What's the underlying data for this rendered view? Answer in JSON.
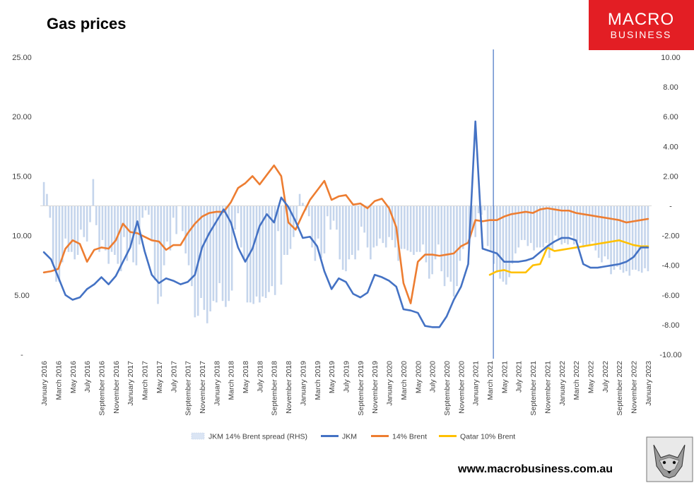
{
  "page": {
    "brand_line1": "MACRO",
    "brand_line2": "BUSINESS",
    "website": "www.macrobusiness.com.au",
    "wolf_icon": "wolf-head-icon"
  },
  "chart_data": {
    "type": "line",
    "title": "Gas prices",
    "y_left": {
      "ylim": [
        0,
        25
      ],
      "ticks": [
        0,
        5,
        10,
        15,
        20,
        25
      ],
      "tick_labels": [
        "-",
        "5.00",
        "10.00",
        "15.00",
        "20.00",
        "25.00"
      ]
    },
    "y_right": {
      "ylim": [
        -10,
        10
      ],
      "ticks": [
        -10,
        -8,
        -6,
        -4,
        -2,
        0,
        2,
        4,
        6,
        8,
        10
      ],
      "tick_labels": [
        "-10.00",
        "-8.00",
        "-6.00",
        "-4.00",
        "-2.00",
        "-",
        "2.00",
        "4.00",
        "6.00",
        "8.00",
        "10.00"
      ]
    },
    "x_tick_labels": [
      "January 2016",
      "March 2016",
      "May 2016",
      "July 2016",
      "September 2016",
      "November 2016",
      "January 2017",
      "March 2017",
      "May 2017",
      "July 2017",
      "September 2017",
      "November 2017",
      "January 2018",
      "March 2018",
      "May 2018",
      "July 2018",
      "September 2018",
      "November 2018",
      "January 2019",
      "March 2019",
      "May 2019",
      "July 2019",
      "September 2019",
      "November 2019",
      "January 2020",
      "March 2020",
      "May 2020",
      "July 2020",
      "September 2020",
      "November 2020",
      "January 2021",
      "March 2021",
      "May 2021",
      "July 2021",
      "September 2021",
      "November 2021",
      "January 2022",
      "March 2022",
      "May 2022",
      "July 2022",
      "September 2022",
      "November 2022",
      "January 2023"
    ],
    "grid": false,
    "legend_position": "bottom",
    "vertical_marker_month_index": 62.5,
    "series": [
      {
        "name": "JKM 14% Brent spread (RHS)",
        "type": "bar",
        "axis": "right",
        "color": "#c5d5ec",
        "values": [
          1.6,
          0.8,
          -0.8,
          -3.9,
          -5.1,
          -5.1,
          -3.8,
          -2.2,
          -3.1,
          -3.1,
          -3.6,
          -3.3,
          -1.6,
          -2.1,
          -2.4,
          -1.1,
          1.8,
          -1.3,
          -3.1,
          -2.3,
          -3.0,
          -3.9,
          -3.1,
          -3.3,
          -3.9,
          -4.4,
          -2.1,
          -3.7,
          -2.8,
          -3.8,
          -4.0,
          -2.6,
          -0.8,
          -0.3,
          -0.6,
          -2.3,
          -5.0,
          -6.6,
          -6.1,
          -4.0,
          -2.4,
          -3.0,
          -0.8,
          -1.9,
          0.0,
          -1.7,
          -3.2,
          -4.0,
          -5.4,
          -7.5,
          -7.4,
          -6.2,
          -7.0,
          -7.9,
          -7.1,
          -6.4,
          -6.5,
          -5.2,
          -6.4,
          -6.8,
          -6.4,
          -5.7,
          -1.6,
          -0.5,
          -2.8,
          -3.6,
          -6.5,
          -6.5,
          -6.6,
          -6.1,
          -6.5,
          -6.1,
          -6.2,
          -5.8,
          -5.4,
          -6.0,
          -1.7,
          -5.3,
          -3.3,
          -3.3,
          -2.9,
          -2.1,
          -1.0,
          0.8,
          0.2,
          -0.3,
          -0.7,
          -2.8,
          -3.7,
          -2.2,
          -3.5,
          -3.2,
          -0.7,
          -1.6,
          -1.0,
          -1.6,
          -3.6,
          -4.3,
          -4.4,
          -3.6,
          -3.3,
          -3.6,
          -3.0,
          -1.4,
          -1.8,
          -2.8,
          -3.6,
          -2.8,
          -2.7,
          -2.2,
          -2.5,
          -2.8,
          -2.1,
          -2.3,
          -2.8,
          -3.7,
          -2.9,
          -2.9,
          -3.0,
          -3.1,
          -3.3,
          -3.1,
          -3.1,
          -2.6,
          -3.8,
          -4.9,
          -4.6,
          -3.6,
          -2.6,
          -4.4,
          -5.4,
          -4.8,
          -5.1,
          -6.1,
          -5.4,
          -3.7,
          -2.9,
          -2.6,
          -2.4,
          -1.6,
          -2.1,
          -0.5,
          -0.6,
          -0.3,
          -2.7,
          -3.0,
          -3.9,
          -4.5,
          -4.9,
          -5.1,
          -5.3,
          -4.8,
          -3.9,
          -3.2,
          -2.8,
          -2.3,
          -2.3,
          -2.7,
          -2.5,
          -3.0,
          -2.8,
          -2.8,
          -2.8,
          -2.5,
          -3.5,
          -3.0,
          -2.0,
          -2.2,
          -2.6,
          -2.5,
          -2.6,
          -2.0,
          -2.6,
          -2.4,
          -2.5,
          -2.8,
          -2.7,
          -2.6,
          -2.4,
          -3.0,
          -3.5,
          -3.8,
          -3.4,
          -3.6,
          -4.6,
          -4.3,
          -4.1,
          -4.3,
          -4.5,
          -4.4,
          -4.7,
          -4.3,
          -4.3,
          -4.4,
          -4.5,
          -4.2,
          -4.4
        ]
      },
      {
        "name": "JKM",
        "type": "line",
        "axis": "left",
        "color": "#4472c4",
        "points": [
          [
            0,
            8.6
          ],
          [
            1,
            8.0
          ],
          [
            2,
            6.5
          ],
          [
            3,
            5.0
          ],
          [
            4,
            4.6
          ],
          [
            5,
            4.8
          ],
          [
            6,
            5.5
          ],
          [
            7,
            5.9
          ],
          [
            8,
            6.5
          ],
          [
            9,
            5.9
          ],
          [
            10,
            6.6
          ],
          [
            11,
            7.8
          ],
          [
            12,
            9.0
          ],
          [
            13,
            11.2
          ],
          [
            14,
            8.7
          ],
          [
            15,
            6.7
          ],
          [
            16,
            6.0
          ],
          [
            17,
            6.4
          ],
          [
            18,
            6.2
          ],
          [
            19,
            5.9
          ],
          [
            20,
            6.1
          ],
          [
            21,
            6.7
          ],
          [
            22,
            9.0
          ],
          [
            23,
            10.2
          ],
          [
            24,
            11.2
          ],
          [
            25,
            12.2
          ],
          [
            26,
            11.1
          ],
          [
            27,
            9.0
          ],
          [
            28,
            7.8
          ],
          [
            29,
            8.9
          ],
          [
            30,
            10.8
          ],
          [
            31,
            11.8
          ],
          [
            32,
            11.1
          ],
          [
            33,
            13.2
          ],
          [
            34,
            12.4
          ],
          [
            35,
            11.2
          ],
          [
            36,
            9.8
          ],
          [
            37,
            9.9
          ],
          [
            38,
            9.1
          ],
          [
            39,
            7.0
          ],
          [
            40,
            5.5
          ],
          [
            41,
            6.4
          ],
          [
            42,
            6.1
          ],
          [
            43,
            5.1
          ],
          [
            44,
            4.8
          ],
          [
            45,
            5.2
          ],
          [
            46,
            6.7
          ],
          [
            47,
            6.5
          ],
          [
            48,
            6.2
          ],
          [
            49,
            5.7
          ],
          [
            50,
            3.8
          ],
          [
            51,
            3.7
          ],
          [
            52,
            3.5
          ],
          [
            53,
            2.4
          ],
          [
            54,
            2.3
          ],
          [
            55,
            2.3
          ],
          [
            56,
            3.2
          ],
          [
            57,
            4.6
          ],
          [
            58,
            5.7
          ],
          [
            59,
            7.6
          ],
          [
            60,
            19.6
          ],
          [
            61,
            8.9
          ],
          [
            62,
            8.7
          ],
          [
            63,
            8.5
          ],
          [
            64,
            7.8
          ],
          [
            65,
            7.8
          ],
          [
            66,
            7.8
          ],
          [
            67,
            7.9
          ],
          [
            68,
            8.1
          ],
          [
            69,
            8.6
          ],
          [
            70,
            9.1
          ],
          [
            71,
            9.5
          ],
          [
            72,
            9.8
          ],
          [
            73,
            9.8
          ],
          [
            74,
            9.6
          ],
          [
            75,
            7.6
          ],
          [
            76,
            7.3
          ],
          [
            77,
            7.3
          ],
          [
            78,
            7.4
          ],
          [
            79,
            7.5
          ],
          [
            80,
            7.6
          ],
          [
            81,
            7.8
          ],
          [
            82,
            8.2
          ],
          [
            83,
            9.0
          ],
          [
            84,
            9.0
          ]
        ]
      },
      {
        "name": "14% Brent",
        "type": "line",
        "axis": "left",
        "color": "#ed7d31",
        "points": [
          [
            0,
            6.9
          ],
          [
            1,
            7.0
          ],
          [
            2,
            7.2
          ],
          [
            3,
            8.9
          ],
          [
            4,
            9.6
          ],
          [
            5,
            9.3
          ],
          [
            6,
            7.8
          ],
          [
            7,
            8.8
          ],
          [
            8,
            9.0
          ],
          [
            9,
            8.9
          ],
          [
            10,
            9.6
          ],
          [
            11,
            11.0
          ],
          [
            12,
            10.3
          ],
          [
            13,
            10.2
          ],
          [
            14,
            9.9
          ],
          [
            15,
            9.6
          ],
          [
            16,
            9.5
          ],
          [
            17,
            8.8
          ],
          [
            18,
            9.2
          ],
          [
            19,
            9.2
          ],
          [
            20,
            10.2
          ],
          [
            21,
            11.0
          ],
          [
            22,
            11.6
          ],
          [
            23,
            11.9
          ],
          [
            24,
            12.0
          ],
          [
            25,
            12.0
          ],
          [
            26,
            12.8
          ],
          [
            27,
            14.0
          ],
          [
            28,
            14.4
          ],
          [
            29,
            15.0
          ],
          [
            30,
            14.3
          ],
          [
            31,
            15.1
          ],
          [
            32,
            15.9
          ],
          [
            33,
            15.0
          ],
          [
            34,
            11.1
          ],
          [
            35,
            10.5
          ],
          [
            36,
            11.8
          ],
          [
            37,
            13.0
          ],
          [
            38,
            13.8
          ],
          [
            39,
            14.6
          ],
          [
            40,
            13.0
          ],
          [
            41,
            13.3
          ],
          [
            42,
            13.4
          ],
          [
            43,
            12.6
          ],
          [
            44,
            12.7
          ],
          [
            45,
            12.3
          ],
          [
            46,
            12.9
          ],
          [
            47,
            13.1
          ],
          [
            48,
            12.3
          ],
          [
            49,
            10.7
          ],
          [
            50,
            6.0
          ],
          [
            51,
            4.3
          ],
          [
            52,
            7.8
          ],
          [
            53,
            8.4
          ],
          [
            54,
            8.4
          ],
          [
            55,
            8.3
          ],
          [
            56,
            8.4
          ],
          [
            57,
            8.5
          ],
          [
            58,
            9.1
          ],
          [
            59,
            9.4
          ],
          [
            60,
            11.3
          ],
          [
            61,
            11.2
          ],
          [
            62,
            11.3
          ],
          [
            63,
            11.3
          ],
          [
            64,
            11.6
          ],
          [
            65,
            11.8
          ],
          [
            66,
            11.9
          ],
          [
            67,
            12.0
          ],
          [
            68,
            11.9
          ],
          [
            69,
            12.2
          ],
          [
            70,
            12.3
          ],
          [
            71,
            12.2
          ],
          [
            72,
            12.1
          ],
          [
            73,
            12.1
          ],
          [
            74,
            11.9
          ],
          [
            75,
            11.8
          ],
          [
            76,
            11.7
          ],
          [
            77,
            11.6
          ],
          [
            78,
            11.5
          ],
          [
            79,
            11.4
          ],
          [
            80,
            11.3
          ],
          [
            81,
            11.1
          ],
          [
            82,
            11.2
          ],
          [
            83,
            11.3
          ],
          [
            84,
            11.4
          ]
        ]
      },
      {
        "name": "Qatar 10% Brent",
        "type": "line",
        "axis": "left",
        "color": "#ffc000",
        "points": [
          [
            62,
            6.7
          ],
          [
            63,
            7.0
          ],
          [
            64,
            7.1
          ],
          [
            65,
            6.9
          ],
          [
            66,
            6.9
          ],
          [
            67,
            6.9
          ],
          [
            68,
            7.5
          ],
          [
            69,
            7.6
          ],
          [
            70,
            9.0
          ],
          [
            71,
            8.7
          ],
          [
            72,
            8.8
          ],
          [
            73,
            8.9
          ],
          [
            74,
            9.0
          ],
          [
            75,
            9.1
          ],
          [
            76,
            9.2
          ],
          [
            77,
            9.3
          ],
          [
            78,
            9.4
          ],
          [
            79,
            9.5
          ],
          [
            80,
            9.6
          ],
          [
            81,
            9.4
          ],
          [
            82,
            9.2
          ],
          [
            83,
            9.1
          ],
          [
            84,
            9.1
          ]
        ]
      }
    ]
  }
}
